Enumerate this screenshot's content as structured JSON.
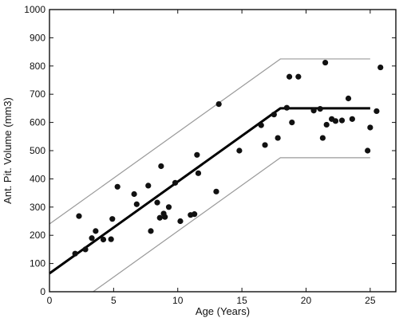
{
  "chart_data": {
    "type": "scatter",
    "title": "",
    "xlabel": "Age (Years)",
    "ylabel": "Ant. Pit. Volume (mm3)",
    "xlim": [
      0,
      27
    ],
    "ylim": [
      0,
      1000
    ],
    "xticks": [
      0,
      5,
      10,
      15,
      20,
      25
    ],
    "yticks": [
      0,
      100,
      200,
      300,
      400,
      500,
      600,
      700,
      800,
      900,
      1000
    ],
    "grid": false,
    "colors": {
      "points": "#111111",
      "fit": "#000000",
      "bounds": "#9a9a9a",
      "axes": "#111111"
    },
    "series": [
      {
        "kind": "points",
        "x": [
          2.0,
          2.3,
          2.8,
          3.3,
          3.6,
          4.2,
          4.8,
          4.9,
          5.3,
          6.6,
          6.8,
          7.7,
          7.9,
          8.4,
          8.6,
          8.7,
          8.9,
          9.0,
          9.3,
          9.8,
          10.2,
          11.0,
          11.3,
          11.5,
          11.6,
          13.0,
          13.2,
          14.8,
          16.5,
          16.8,
          17.5,
          17.8,
          18.5,
          18.7,
          18.9,
          19.4,
          20.6,
          21.1,
          21.3,
          21.5,
          21.6,
          22.0,
          22.3,
          22.8,
          23.3,
          23.6,
          24.8,
          25.0,
          25.5,
          25.8
        ],
        "y": [
          135,
          268,
          150,
          190,
          215,
          185,
          186,
          258,
          372,
          346,
          310,
          376,
          215,
          316,
          262,
          445,
          277,
          265,
          300,
          386,
          250,
          272,
          275,
          485,
          420,
          355,
          665,
          500,
          590,
          520,
          628,
          545,
          652,
          762,
          600,
          762,
          642,
          648,
          545,
          812,
          592,
          612,
          605,
          607,
          685,
          612,
          500,
          582,
          640,
          795
        ]
      },
      {
        "kind": "fit",
        "x": [
          0,
          18,
          25
        ],
        "y": [
          65,
          650,
          650
        ]
      },
      {
        "kind": "upper-bound",
        "x": [
          0,
          18,
          25
        ],
        "y": [
          240,
          825,
          825
        ]
      },
      {
        "kind": "lower-bound",
        "x": [
          3.4,
          18,
          25
        ],
        "y": [
          0,
          475,
          475
        ]
      }
    ]
  }
}
